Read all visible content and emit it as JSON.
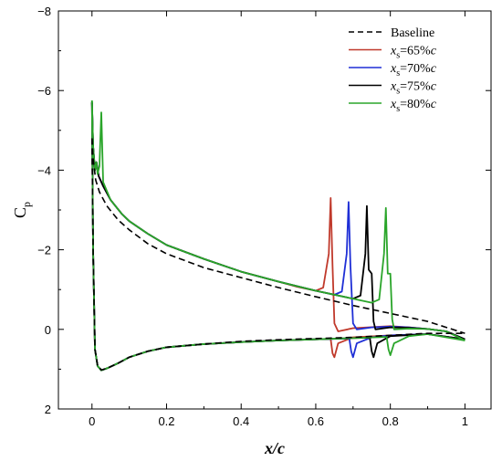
{
  "chart_data": {
    "type": "line",
    "xlabel": "x/c",
    "ylabel": "C",
    "ylabel_sub": "p",
    "xlim": [
      -0.09,
      1.07
    ],
    "ylim": [
      2,
      -8
    ],
    "y_inverted": true,
    "xticks": [
      {
        "value": 0,
        "label": "0"
      },
      {
        "value": 0.2,
        "label": "0.2"
      },
      {
        "value": 0.4,
        "label": "0.4"
      },
      {
        "value": 0.6,
        "label": "0.6"
      },
      {
        "value": 0.8,
        "label": "0.8"
      },
      {
        "value": 1,
        "label": "1"
      }
    ],
    "yticks": [
      {
        "value": -8,
        "label": "−8"
      },
      {
        "value": -6,
        "label": "−6"
      },
      {
        "value": -4,
        "label": "−4"
      },
      {
        "value": -2,
        "label": "−2"
      },
      {
        "value": 0,
        "label": "0"
      },
      {
        "value": 2,
        "label": "2"
      }
    ],
    "grid": false,
    "legend_position": "top-right",
    "series": [
      {
        "name": "Baseline",
        "color": "#000000",
        "dash": true,
        "legend": {
          "text": "Baseline"
        },
        "upper": [
          [
            0,
            -4.8
          ],
          [
            0.003,
            -4.3
          ],
          [
            0.01,
            -3.75
          ],
          [
            0.02,
            -3.45
          ],
          [
            0.04,
            -3.1
          ],
          [
            0.07,
            -2.75
          ],
          [
            0.1,
            -2.5
          ],
          [
            0.15,
            -2.15
          ],
          [
            0.2,
            -1.9
          ],
          [
            0.3,
            -1.55
          ],
          [
            0.4,
            -1.3
          ],
          [
            0.5,
            -1.05
          ],
          [
            0.6,
            -0.82
          ],
          [
            0.7,
            -0.6
          ],
          [
            0.8,
            -0.4
          ],
          [
            0.9,
            -0.2
          ],
          [
            1.0,
            0.1
          ]
        ],
        "lower": [
          [
            0,
            -4.8
          ],
          [
            0.003,
            -2.0
          ],
          [
            0.008,
            0.5
          ],
          [
            0.015,
            0.9
          ],
          [
            0.025,
            1.02
          ],
          [
            0.04,
            0.98
          ],
          [
            0.07,
            0.85
          ],
          [
            0.1,
            0.7
          ],
          [
            0.15,
            0.55
          ],
          [
            0.2,
            0.45
          ],
          [
            0.3,
            0.37
          ],
          [
            0.4,
            0.3
          ],
          [
            0.5,
            0.26
          ],
          [
            0.6,
            0.23
          ],
          [
            0.7,
            0.2
          ],
          [
            0.8,
            0.15
          ],
          [
            0.9,
            0.1
          ],
          [
            1.0,
            0.1
          ]
        ]
      },
      {
        "name": "xs=65%c",
        "color": "#c0392b",
        "dash": false,
        "legend": {
          "italic": "x",
          "sub": "s",
          "rest": "=65%",
          "italic2": "c"
        },
        "upper": [
          [
            0,
            -5.7
          ],
          [
            0.003,
            -4.6
          ],
          [
            0.008,
            -4.0
          ],
          [
            0.012,
            -4.2
          ],
          [
            0.018,
            -3.85
          ],
          [
            0.03,
            -3.6
          ],
          [
            0.05,
            -3.25
          ],
          [
            0.08,
            -2.9
          ],
          [
            0.1,
            -2.72
          ],
          [
            0.15,
            -2.4
          ],
          [
            0.2,
            -2.12
          ],
          [
            0.3,
            -1.77
          ],
          [
            0.4,
            -1.45
          ],
          [
            0.5,
            -1.2
          ],
          [
            0.55,
            -1.07
          ],
          [
            0.6,
            -0.97
          ],
          [
            0.62,
            -1.05
          ],
          [
            0.635,
            -1.9
          ],
          [
            0.64,
            -3.3
          ],
          [
            0.645,
            -1.6
          ],
          [
            0.65,
            -0.15
          ],
          [
            0.66,
            0.05
          ],
          [
            0.7,
            -0.03
          ],
          [
            0.8,
            -0.08
          ],
          [
            0.85,
            -0.05
          ],
          [
            0.9,
            -0.01
          ],
          [
            0.95,
            0.05
          ],
          [
            1.0,
            0.25
          ]
        ],
        "lower": [
          [
            0,
            -5.7
          ],
          [
            0.003,
            -2.0
          ],
          [
            0.008,
            0.5
          ],
          [
            0.015,
            0.92
          ],
          [
            0.025,
            1.03
          ],
          [
            0.04,
            0.98
          ],
          [
            0.07,
            0.85
          ],
          [
            0.1,
            0.7
          ],
          [
            0.15,
            0.55
          ],
          [
            0.2,
            0.45
          ],
          [
            0.3,
            0.37
          ],
          [
            0.4,
            0.32
          ],
          [
            0.5,
            0.28
          ],
          [
            0.6,
            0.25
          ],
          [
            0.64,
            0.24
          ],
          [
            0.645,
            0.6
          ],
          [
            0.65,
            0.7
          ],
          [
            0.66,
            0.35
          ],
          [
            0.7,
            0.2
          ],
          [
            0.8,
            0.15
          ],
          [
            0.9,
            0.12
          ],
          [
            1.0,
            0.25
          ]
        ]
      },
      {
        "name": "xs=70%c",
        "color": "#1f2fd6",
        "dash": false,
        "legend": {
          "italic": "x",
          "sub": "s",
          "rest": "=70%",
          "italic2": "c"
        },
        "upper": [
          [
            0,
            -5.7
          ],
          [
            0.003,
            -4.6
          ],
          [
            0.008,
            -4.0
          ],
          [
            0.012,
            -4.2
          ],
          [
            0.018,
            -3.85
          ],
          [
            0.03,
            -3.6
          ],
          [
            0.05,
            -3.25
          ],
          [
            0.08,
            -2.9
          ],
          [
            0.1,
            -2.72
          ],
          [
            0.15,
            -2.4
          ],
          [
            0.2,
            -2.12
          ],
          [
            0.3,
            -1.77
          ],
          [
            0.4,
            -1.45
          ],
          [
            0.5,
            -1.2
          ],
          [
            0.6,
            -0.97
          ],
          [
            0.65,
            -0.87
          ],
          [
            0.67,
            -0.95
          ],
          [
            0.683,
            -1.9
          ],
          [
            0.688,
            -3.2
          ],
          [
            0.693,
            -1.6
          ],
          [
            0.7,
            -0.15
          ],
          [
            0.71,
            0.0
          ],
          [
            0.75,
            -0.05
          ],
          [
            0.8,
            -0.07
          ],
          [
            0.85,
            -0.05
          ],
          [
            0.9,
            -0.01
          ],
          [
            0.95,
            0.05
          ],
          [
            1.0,
            0.25
          ]
        ],
        "lower": [
          [
            0,
            -5.7
          ],
          [
            0.003,
            -2.0
          ],
          [
            0.008,
            0.5
          ],
          [
            0.015,
            0.92
          ],
          [
            0.025,
            1.03
          ],
          [
            0.04,
            0.98
          ],
          [
            0.07,
            0.85
          ],
          [
            0.1,
            0.7
          ],
          [
            0.15,
            0.55
          ],
          [
            0.2,
            0.45
          ],
          [
            0.3,
            0.37
          ],
          [
            0.4,
            0.32
          ],
          [
            0.5,
            0.28
          ],
          [
            0.6,
            0.25
          ],
          [
            0.69,
            0.23
          ],
          [
            0.695,
            0.55
          ],
          [
            0.7,
            0.7
          ],
          [
            0.71,
            0.35
          ],
          [
            0.75,
            0.2
          ],
          [
            0.8,
            0.15
          ],
          [
            0.9,
            0.12
          ],
          [
            1.0,
            0.25
          ]
        ]
      },
      {
        "name": "xs=75%c",
        "color": "#000000",
        "dash": false,
        "legend": {
          "italic": "x",
          "sub": "s",
          "rest": "=75%",
          "italic2": "c"
        },
        "upper": [
          [
            0,
            -5.7
          ],
          [
            0.003,
            -4.6
          ],
          [
            0.008,
            -4.0
          ],
          [
            0.012,
            -4.2
          ],
          [
            0.018,
            -3.85
          ],
          [
            0.03,
            -3.6
          ],
          [
            0.05,
            -3.25
          ],
          [
            0.08,
            -2.9
          ],
          [
            0.1,
            -2.72
          ],
          [
            0.15,
            -2.4
          ],
          [
            0.2,
            -2.12
          ],
          [
            0.3,
            -1.77
          ],
          [
            0.4,
            -1.45
          ],
          [
            0.5,
            -1.2
          ],
          [
            0.6,
            -0.97
          ],
          [
            0.7,
            -0.77
          ],
          [
            0.72,
            -0.85
          ],
          [
            0.733,
            -1.9
          ],
          [
            0.737,
            -3.1
          ],
          [
            0.742,
            -1.5
          ],
          [
            0.75,
            -1.4
          ],
          [
            0.755,
            -0.2
          ],
          [
            0.76,
            0.0
          ],
          [
            0.8,
            -0.05
          ],
          [
            0.85,
            -0.04
          ],
          [
            0.9,
            -0.01
          ],
          [
            0.95,
            0.05
          ],
          [
            1.0,
            0.25
          ]
        ],
        "lower": [
          [
            0,
            -5.7
          ],
          [
            0.003,
            -2.0
          ],
          [
            0.008,
            0.5
          ],
          [
            0.015,
            0.92
          ],
          [
            0.025,
            1.03
          ],
          [
            0.04,
            0.98
          ],
          [
            0.07,
            0.85
          ],
          [
            0.1,
            0.7
          ],
          [
            0.15,
            0.55
          ],
          [
            0.2,
            0.45
          ],
          [
            0.3,
            0.37
          ],
          [
            0.4,
            0.32
          ],
          [
            0.5,
            0.28
          ],
          [
            0.6,
            0.25
          ],
          [
            0.7,
            0.22
          ],
          [
            0.745,
            0.21
          ],
          [
            0.75,
            0.55
          ],
          [
            0.755,
            0.7
          ],
          [
            0.765,
            0.35
          ],
          [
            0.8,
            0.17
          ],
          [
            0.9,
            0.12
          ],
          [
            1.0,
            0.25
          ]
        ]
      },
      {
        "name": "xs=80%c",
        "color": "#2aa52a",
        "dash": false,
        "legend": {
          "italic": "x",
          "sub": "s",
          "rest": "=80%",
          "italic2": "c"
        },
        "upper": [
          [
            0,
            -5.75
          ],
          [
            0.003,
            -4.6
          ],
          [
            0.008,
            -4.0
          ],
          [
            0.012,
            -4.2
          ],
          [
            0.015,
            -3.9
          ],
          [
            0.02,
            -4.1
          ],
          [
            0.025,
            -5.45
          ],
          [
            0.03,
            -3.7
          ],
          [
            0.05,
            -3.25
          ],
          [
            0.08,
            -2.9
          ],
          [
            0.1,
            -2.72
          ],
          [
            0.15,
            -2.4
          ],
          [
            0.2,
            -2.12
          ],
          [
            0.3,
            -1.77
          ],
          [
            0.4,
            -1.45
          ],
          [
            0.5,
            -1.2
          ],
          [
            0.6,
            -0.97
          ],
          [
            0.7,
            -0.77
          ],
          [
            0.75,
            -0.67
          ],
          [
            0.77,
            -0.75
          ],
          [
            0.783,
            -1.9
          ],
          [
            0.788,
            -3.05
          ],
          [
            0.793,
            -1.4
          ],
          [
            0.8,
            -1.4
          ],
          [
            0.805,
            -0.25
          ],
          [
            0.81,
            0.0
          ],
          [
            0.85,
            -0.02
          ],
          [
            0.9,
            -0.01
          ],
          [
            0.95,
            0.05
          ],
          [
            1.0,
            0.28
          ]
        ],
        "lower": [
          [
            0,
            -5.75
          ],
          [
            0.003,
            -2.0
          ],
          [
            0.008,
            0.5
          ],
          [
            0.015,
            0.92
          ],
          [
            0.025,
            1.03
          ],
          [
            0.04,
            0.98
          ],
          [
            0.07,
            0.85
          ],
          [
            0.1,
            0.7
          ],
          [
            0.15,
            0.55
          ],
          [
            0.2,
            0.45
          ],
          [
            0.3,
            0.37
          ],
          [
            0.4,
            0.32
          ],
          [
            0.5,
            0.28
          ],
          [
            0.6,
            0.25
          ],
          [
            0.7,
            0.22
          ],
          [
            0.79,
            0.19
          ],
          [
            0.795,
            0.5
          ],
          [
            0.8,
            0.65
          ],
          [
            0.81,
            0.35
          ],
          [
            0.85,
            0.17
          ],
          [
            0.9,
            0.12
          ],
          [
            1.0,
            0.28
          ]
        ]
      }
    ]
  }
}
